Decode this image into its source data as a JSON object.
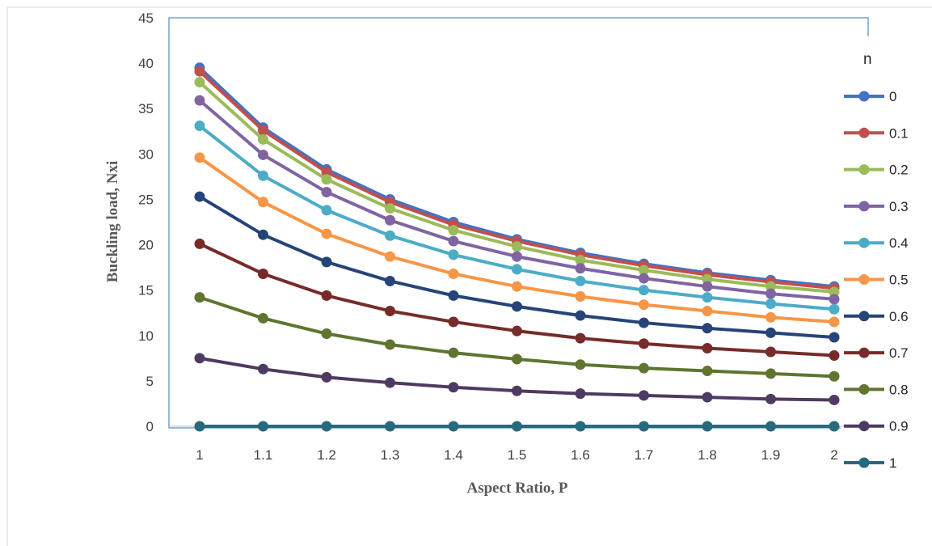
{
  "chart_data": {
    "type": "line",
    "xlabel": "Aspect Ratio, P",
    "ylabel": "Buckling load, Nxi",
    "ylim": [
      0,
      45
    ],
    "yticks": [
      "0",
      "5",
      "10",
      "15",
      "20",
      "25",
      "30",
      "35",
      "40",
      "45"
    ],
    "categories": [
      "1",
      "1.1",
      "1.2",
      "1.3",
      "1.4",
      "1.5",
      "1.6",
      "1.7",
      "1.8",
      "1.9",
      "2"
    ],
    "grid": false,
    "legend": {
      "title": "n",
      "position": "right"
    },
    "series": [
      {
        "name": "0",
        "color": "#4472C4",
        "values": [
          39.5,
          32.9,
          28.3,
          25.0,
          22.5,
          20.6,
          19.1,
          17.9,
          16.9,
          16.1,
          15.4
        ]
      },
      {
        "name": "0.1",
        "color": "#C0504D",
        "values": [
          39.1,
          32.6,
          28.0,
          24.7,
          22.2,
          20.4,
          18.9,
          17.7,
          16.7,
          15.9,
          15.2
        ]
      },
      {
        "name": "0.2",
        "color": "#9BBB59",
        "values": [
          37.9,
          31.6,
          27.2,
          24.0,
          21.6,
          19.8,
          18.3,
          17.2,
          16.2,
          15.4,
          14.8
        ]
      },
      {
        "name": "0.3",
        "color": "#8064A2",
        "values": [
          35.9,
          29.9,
          25.8,
          22.7,
          20.4,
          18.7,
          17.4,
          16.3,
          15.4,
          14.6,
          14.0
        ]
      },
      {
        "name": "0.4",
        "color": "#4BACC6",
        "values": [
          33.1,
          27.6,
          23.8,
          21.0,
          18.9,
          17.3,
          16.0,
          15.0,
          14.2,
          13.5,
          12.9
        ]
      },
      {
        "name": "0.5",
        "color": "#F79646",
        "values": [
          29.6,
          24.7,
          21.2,
          18.7,
          16.8,
          15.4,
          14.3,
          13.4,
          12.7,
          12.0,
          11.5
        ]
      },
      {
        "name": "0.6",
        "color": "#264478",
        "values": [
          25.3,
          21.1,
          18.1,
          16.0,
          14.4,
          13.2,
          12.2,
          11.4,
          10.8,
          10.3,
          9.8
        ]
      },
      {
        "name": "0.7",
        "color": "#772C2A",
        "values": [
          20.1,
          16.8,
          14.4,
          12.7,
          11.5,
          10.5,
          9.7,
          9.1,
          8.6,
          8.2,
          7.8
        ]
      },
      {
        "name": "0.8",
        "color": "#5F7530",
        "values": [
          14.2,
          11.9,
          10.2,
          9.0,
          8.1,
          7.4,
          6.8,
          6.4,
          6.1,
          5.8,
          5.5
        ]
      },
      {
        "name": "0.9",
        "color": "#4D3B62",
        "values": [
          7.5,
          6.3,
          5.4,
          4.8,
          4.3,
          3.9,
          3.6,
          3.4,
          3.2,
          3.0,
          2.9
        ]
      },
      {
        "name": "1",
        "color": "#276A7C",
        "values": [
          0,
          0,
          0,
          0,
          0,
          0,
          0,
          0,
          0,
          0,
          0
        ]
      }
    ]
  }
}
